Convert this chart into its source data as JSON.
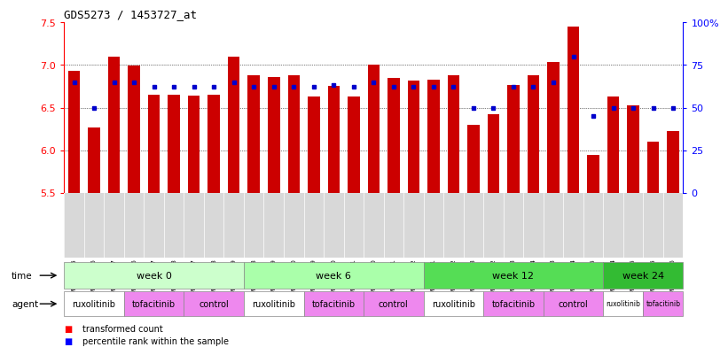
{
  "title": "GDS5273 / 1453727_at",
  "samples": [
    "GSM1105885",
    "GSM1105886",
    "GSM1105887",
    "GSM1105896",
    "GSM1105897",
    "GSM1105898",
    "GSM1105907",
    "GSM1105908",
    "GSM1105909",
    "GSM1105888",
    "GSM1105889",
    "GSM1105890",
    "GSM1105899",
    "GSM1105900",
    "GSM1105901",
    "GSM1105910",
    "GSM1105911",
    "GSM1105912",
    "GSM1105891",
    "GSM1105892",
    "GSM1105893",
    "GSM1105902",
    "GSM1105903",
    "GSM1105904",
    "GSM1105913",
    "GSM1105914",
    "GSM1105915",
    "GSM1105894",
    "GSM1105895",
    "GSM1105905",
    "GSM1105906"
  ],
  "transformed_count": [
    6.93,
    6.27,
    7.1,
    6.99,
    6.65,
    6.65,
    6.64,
    6.65,
    7.1,
    6.88,
    6.86,
    6.88,
    6.63,
    6.75,
    6.63,
    7.0,
    6.85,
    6.82,
    6.83,
    6.88,
    6.3,
    6.42,
    6.77,
    6.88,
    7.04,
    7.45,
    5.94,
    6.63,
    6.53,
    6.1,
    6.22
  ],
  "percentile_rank": [
    65,
    50,
    65,
    65,
    62,
    62,
    62,
    62,
    65,
    62,
    62,
    62,
    62,
    63,
    62,
    65,
    62,
    62,
    62,
    62,
    50,
    50,
    62,
    62,
    65,
    80,
    45,
    50,
    50,
    50,
    50
  ],
  "ylim": [
    5.5,
    7.5
  ],
  "yticks": [
    5.5,
    6.0,
    6.5,
    7.0,
    7.5
  ],
  "right_yticks": [
    0,
    25,
    50,
    75,
    100
  ],
  "right_ylabels": [
    "0",
    "25",
    "50",
    "75",
    "100%"
  ],
  "bar_color": "#cc0000",
  "blue_color": "#0000cc",
  "bar_width": 0.6,
  "weeks": [
    {
      "label": "week 0",
      "start": 0,
      "end": 9,
      "color": "#ccffcc"
    },
    {
      "label": "week 6",
      "start": 9,
      "end": 18,
      "color": "#aaffaa"
    },
    {
      "label": "week 12",
      "start": 18,
      "end": 27,
      "color": "#55dd55"
    },
    {
      "label": "week 24",
      "start": 27,
      "end": 31,
      "color": "#33bb33"
    }
  ],
  "agents": [
    {
      "label": "ruxolitinib",
      "start": 0,
      "end": 3,
      "color": "#ffffff"
    },
    {
      "label": "tofacitinib",
      "start": 3,
      "end": 6,
      "color": "#ee88ee"
    },
    {
      "label": "control",
      "start": 6,
      "end": 9,
      "color": "#ee88ee"
    },
    {
      "label": "ruxolitinib",
      "start": 9,
      "end": 12,
      "color": "#ffffff"
    },
    {
      "label": "tofacitinib",
      "start": 12,
      "end": 15,
      "color": "#ee88ee"
    },
    {
      "label": "control",
      "start": 15,
      "end": 18,
      "color": "#ee88ee"
    },
    {
      "label": "ruxolitinib",
      "start": 18,
      "end": 21,
      "color": "#ffffff"
    },
    {
      "label": "tofacitinib",
      "start": 21,
      "end": 24,
      "color": "#ee88ee"
    },
    {
      "label": "control",
      "start": 24,
      "end": 27,
      "color": "#ee88ee"
    },
    {
      "label": "ruxolitinib",
      "start": 27,
      "end": 29,
      "color": "#ffffff"
    },
    {
      "label": "tofacitinib",
      "start": 29,
      "end": 31,
      "color": "#ee88ee"
    }
  ]
}
